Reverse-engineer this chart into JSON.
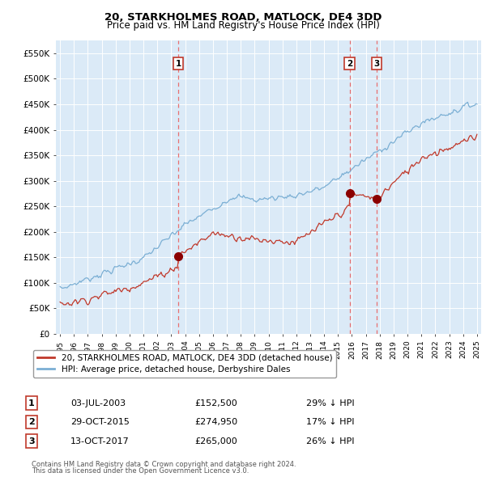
{
  "title1": "20, STARKHOLMES ROAD, MATLOCK, DE4 3DD",
  "title2": "Price paid vs. HM Land Registry's House Price Index (HPI)",
  "ylim": [
    0,
    575000
  ],
  "yticks": [
    0,
    50000,
    100000,
    150000,
    200000,
    250000,
    300000,
    350000,
    400000,
    450000,
    500000,
    550000
  ],
  "ytick_labels": [
    "£0",
    "£50K",
    "£100K",
    "£150K",
    "£200K",
    "£250K",
    "£300K",
    "£350K",
    "£400K",
    "£450K",
    "£500K",
    "£550K"
  ],
  "hpi_color": "#7bafd4",
  "price_color": "#c0392b",
  "vline_color": "#e87070",
  "marker_color": "#8b0000",
  "plot_bg": "#dbeaf7",
  "legend_label_price": "20, STARKHOLMES ROAD, MATLOCK, DE4 3DD (detached house)",
  "legend_label_hpi": "HPI: Average price, detached house, Derbyshire Dales",
  "transactions": [
    {
      "num": 1,
      "date": "03-JUL-2003",
      "price": 152500,
      "pct": "29% ↓ HPI",
      "year": 2003.5
    },
    {
      "num": 2,
      "date": "29-OCT-2015",
      "price": 274950,
      "pct": "17% ↓ HPI",
      "year": 2015.83
    },
    {
      "num": 3,
      "date": "13-OCT-2017",
      "price": 265000,
      "pct": "26% ↓ HPI",
      "year": 2017.78
    }
  ],
  "footer1": "Contains HM Land Registry data © Crown copyright and database right 2024.",
  "footer2": "This data is licensed under the Open Government Licence v3.0."
}
